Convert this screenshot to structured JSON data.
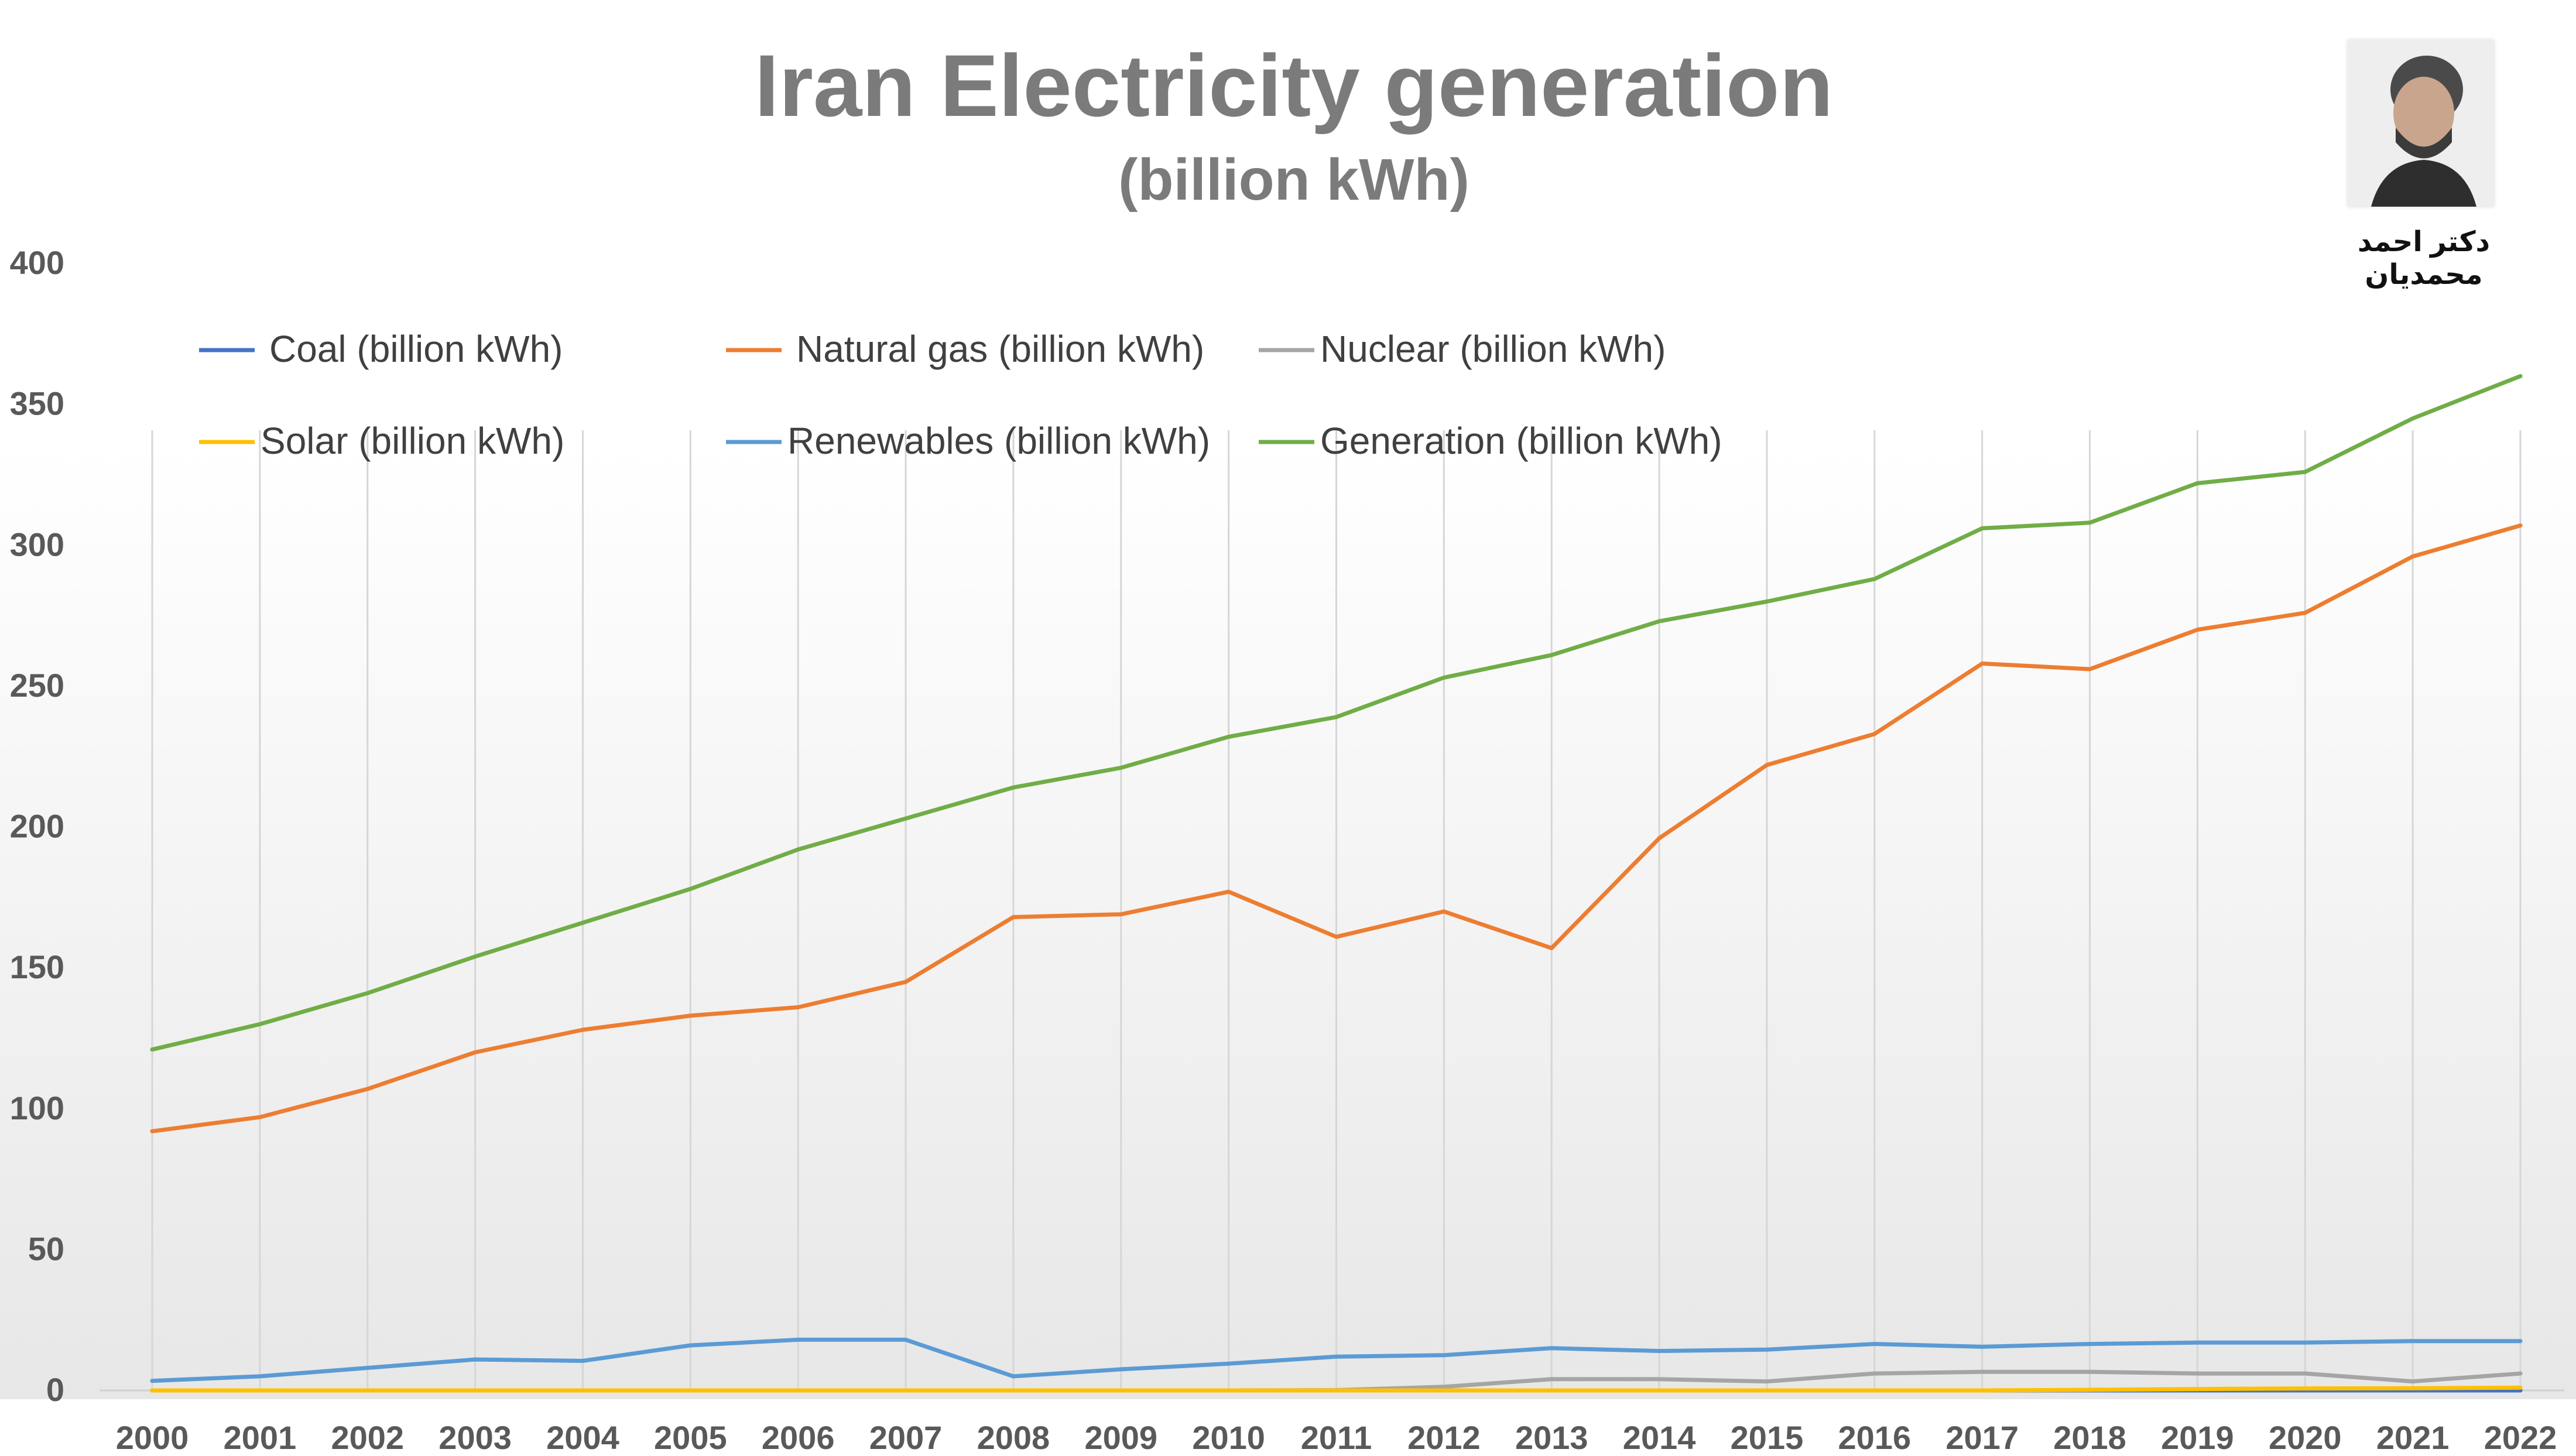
{
  "chart_data": {
    "type": "line",
    "title": "Iran Electricity generation",
    "subtitle": "(billion kWh)",
    "xlabel": "",
    "ylabel": "",
    "x": [
      "2000",
      "2001",
      "2002",
      "2003",
      "2004",
      "2005",
      "2006",
      "2007",
      "2008",
      "2009",
      "2010",
      "2011",
      "2012",
      "2013",
      "2014",
      "2015",
      "2016",
      "2017",
      "2018",
      "2019",
      "2020",
      "2021",
      "2022"
    ],
    "ylim": [
      0,
      400
    ],
    "yticks": [
      0,
      50,
      100,
      150,
      200,
      250,
      300,
      350,
      400
    ],
    "grid": "vertical",
    "legend_position": "top-left",
    "series": [
      {
        "name": "Coal (billion kWh)",
        "color": "#4472c4",
        "values": [
          0,
          0,
          0,
          0,
          0,
          0,
          0,
          0,
          0,
          0,
          0,
          0,
          0,
          0,
          0,
          0,
          0,
          0,
          0,
          0,
          0,
          0,
          0
        ]
      },
      {
        "name": "Natural gas (billion kWh)",
        "color": "#ed7d31",
        "values": [
          92,
          97,
          107,
          120,
          128,
          133,
          136,
          145,
          168,
          169,
          177,
          161,
          170,
          157,
          196,
          222,
          233,
          258,
          256,
          270,
          276,
          296,
          307
        ]
      },
      {
        "name": "Nuclear (billion kWh)",
        "color": "#a5a5a5",
        "values": [
          0,
          0,
          0,
          0,
          0,
          0,
          0,
          0,
          0,
          0,
          0,
          0.1,
          1.3,
          4,
          4,
          3.2,
          6,
          6.6,
          6.6,
          6,
          6,
          3.2,
          6
        ]
      },
      {
        "name": "Solar (billion kWh)",
        "color": "#ffc000",
        "values": [
          0,
          0,
          0,
          0,
          0,
          0,
          0,
          0,
          0,
          0,
          0,
          0,
          0,
          0,
          0,
          0,
          0,
          0,
          0.2,
          0.5,
          0.7,
          0.8,
          1
        ]
      },
      {
        "name": "Renewables (billion kWh)",
        "color": "#5b9bd5",
        "values": [
          3.4,
          5,
          8,
          11,
          10.5,
          16,
          18,
          18,
          5,
          7.5,
          9.5,
          12,
          12.5,
          15,
          14,
          14.5,
          16.5,
          15.5,
          16.5,
          17,
          17,
          17.5,
          17.5
        ]
      },
      {
        "name": "Generation (billion kWh)",
        "color": "#70ad47",
        "values": [
          121,
          130,
          141,
          154,
          166,
          178,
          192,
          203,
          214,
          221,
          232,
          239,
          253,
          261,
          273,
          280,
          288,
          306,
          308,
          322,
          326,
          345,
          360
        ]
      }
    ]
  },
  "author": {
    "name": "دکتر احمد محمدیان"
  }
}
